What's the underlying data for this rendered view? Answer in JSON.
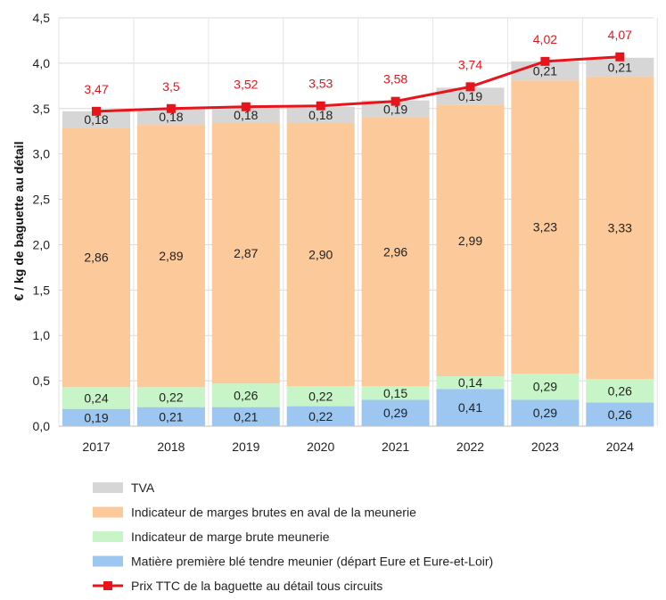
{
  "chart_data": {
    "type": "bar",
    "stacked": true,
    "categories": [
      "2017",
      "2018",
      "2019",
      "2020",
      "2021",
      "2022",
      "2023",
      "2024"
    ],
    "series": [
      {
        "name": "Matière première blé tendre meunier (départ Eure et Eure-et-Loir)",
        "values": [
          0.19,
          0.21,
          0.21,
          0.22,
          0.29,
          0.41,
          0.29,
          0.26
        ],
        "labels": [
          "0,19",
          "0,21",
          "0,21",
          "0,22",
          "0,29",
          "0,41",
          "0,29",
          "0,26"
        ],
        "color": "#9dc7f0"
      },
      {
        "name": "Indicateur de marge brute meunerie",
        "values": [
          0.24,
          0.22,
          0.26,
          0.22,
          0.15,
          0.14,
          0.29,
          0.26
        ],
        "labels": [
          "0,24",
          "0,22",
          "0,26",
          "0,22",
          "0,15",
          "0,14",
          "0,29",
          "0,26"
        ],
        "color": "#c8f5c8"
      },
      {
        "name": "Indicateur de marges brutes en aval de la meunerie",
        "values": [
          2.86,
          2.89,
          2.87,
          2.9,
          2.96,
          2.99,
          3.23,
          3.33
        ],
        "labels": [
          "2,86",
          "2,89",
          "2,87",
          "2,90",
          "2,96",
          "2,99",
          "3,23",
          "3,33"
        ],
        "color": "#fbc99a"
      },
      {
        "name": "TVA",
        "values": [
          0.18,
          0.18,
          0.18,
          0.18,
          0.19,
          0.19,
          0.21,
          0.21
        ],
        "labels": [
          "0,18",
          "0,18",
          "0,18",
          "0,18",
          "0,19",
          "0,19",
          "0,21",
          "0,21"
        ],
        "color": "#d6d6d6"
      }
    ],
    "line": {
      "name": "Prix TTC de la baguette au détail tous circuits",
      "values": [
        3.47,
        3.5,
        3.52,
        3.53,
        3.58,
        3.74,
        4.02,
        4.07
      ],
      "labels": [
        "3,47",
        "3,5",
        "3,52",
        "3,53",
        "3,58",
        "3,74",
        "4,02",
        "4,07"
      ],
      "color": "#e8141c"
    },
    "ylabel": "€ / kg de baguette au détail",
    "ylim": [
      0,
      4.5
    ],
    "yticks": [
      "0,0",
      "0,5",
      "1,0",
      "1,5",
      "2,0",
      "2,5",
      "3,0",
      "3,5",
      "4,0",
      "4,5"
    ],
    "grid": true,
    "legend_placement": "bottom",
    "legend_order": [
      "TVA",
      "Indicateur de marges brutes en aval de la meunerie",
      "Indicateur de marge brute meunerie",
      "Matière première blé tendre meunier (départ Eure et Eure-et-Loir)",
      "Prix TTC de la baguette au détail tous circuits"
    ]
  }
}
